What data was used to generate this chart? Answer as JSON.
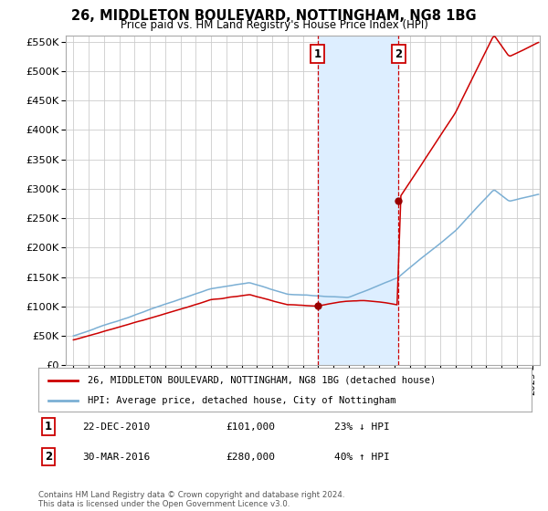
{
  "title": "26, MIDDLETON BOULEVARD, NOTTINGHAM, NG8 1BG",
  "subtitle": "Price paid vs. HM Land Registry's House Price Index (HPI)",
  "legend_line1": "26, MIDDLETON BOULEVARD, NOTTINGHAM, NG8 1BG (detached house)",
  "legend_line2": "HPI: Average price, detached house, City of Nottingham",
  "footnote": "Contains HM Land Registry data © Crown copyright and database right 2024.\nThis data is licensed under the Open Government Licence v3.0.",
  "sale1_date": "22-DEC-2010",
  "sale1_price": 101000,
  "sale1_pct": "23% ↓ HPI",
  "sale2_date": "30-MAR-2016",
  "sale2_price": 280000,
  "sale2_pct": "40% ↑ HPI",
  "sale1_x": 2010.97,
  "sale2_x": 2016.25,
  "ylim_min": 0,
  "ylim_max": 560000,
  "xlim_min": 1994.5,
  "xlim_max": 2025.5,
  "ytick_step": 50000,
  "background_color": "#ffffff",
  "plot_bg_color": "#ffffff",
  "grid_color": "#cccccc",
  "red_line_color": "#cc0000",
  "blue_line_color": "#7bafd4",
  "shade_color": "#ddeeff",
  "vline_color": "#cc0000",
  "marker_color": "#990000",
  "label_box_edge": "#cc0000"
}
